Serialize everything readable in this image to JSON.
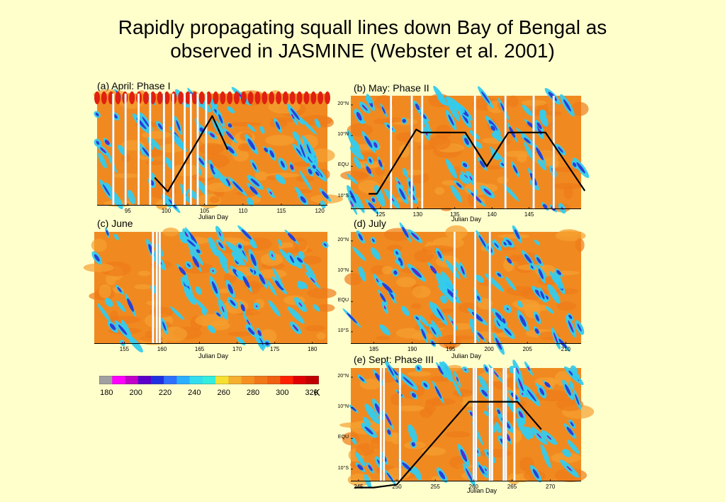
{
  "title": {
    "line1": "Rapidly propagating squall lines down Bay of Bengal as",
    "line2": "observed in JASMINE (Webster et al. 2001)"
  },
  "colors": {
    "background": "#ffffcc",
    "cold_purple": "#8a1ab8",
    "blue": "#2a3fd6",
    "cyan": "#33ccee",
    "warm_orange": "#f08a20",
    "hot_red": "#e02010",
    "track_line": "#000000"
  },
  "chart_data": [
    {
      "type": "heatmap",
      "id": "a",
      "panel_label": "(a) April: Phase I",
      "xlabel": "Julian Day",
      "ylabel": "",
      "x_ticks": [
        "95",
        "100",
        "105",
        "110",
        "115",
        "120"
      ],
      "y_ticks": [],
      "xlim": [
        91,
        121
      ],
      "ylim": [
        -12,
        28
      ],
      "data_gaps_julian_day": [
        93.1,
        94.7,
        96.4,
        97.9,
        99.7,
        100.9,
        102.4,
        103.2,
        104.1,
        105.2
      ],
      "track": [
        {
          "x": 98.5,
          "y": -2
        },
        {
          "x": 100.2,
          "y": -7
        },
        {
          "x": 106,
          "y": 20
        },
        {
          "x": 108,
          "y": 8
        }
      ]
    },
    {
      "type": "heatmap",
      "id": "b",
      "panel_label": "(b) May: Phase II",
      "xlabel": "Julian Day",
      "ylabel": "",
      "x_ticks": [
        "125",
        "130",
        "135",
        "140",
        "145"
      ],
      "y_ticks": [
        "20°N",
        "10°N",
        "EQU",
        "10°S"
      ],
      "xlim": [
        121,
        152
      ],
      "ylim": [
        -14,
        23
      ],
      "data_gaps_julian_day": [
        126.4,
        129.2,
        130.6,
        137.7,
        141.8,
        145.6,
        148.3
      ],
      "track": [
        {
          "x": 123.4,
          "y": -9
        },
        {
          "x": 124.5,
          "y": -9
        },
        {
          "x": 129.8,
          "y": 12
        },
        {
          "x": 130.5,
          "y": 11
        },
        {
          "x": 136.4,
          "y": 11
        },
        {
          "x": 139.3,
          "y": 0
        },
        {
          "x": 142.2,
          "y": 11
        },
        {
          "x": 147.2,
          "y": 11
        },
        {
          "x": 152.5,
          "y": -8
        }
      ]
    },
    {
      "type": "heatmap",
      "id": "c",
      "panel_label": "(c) June",
      "xlabel": "Julian Day",
      "ylabel": "",
      "x_ticks": [
        "155",
        "160",
        "165",
        "170",
        "175",
        "180"
      ],
      "y_ticks": [],
      "xlim": [
        151,
        182
      ],
      "ylim": [
        -12,
        28
      ],
      "data_gaps_julian_day": [
        158.8,
        159.3,
        159.7
      ],
      "track": []
    },
    {
      "type": "heatmap",
      "id": "d",
      "panel_label": "(d) July",
      "xlabel": "Julian Day",
      "ylabel": "",
      "x_ticks": [
        "185",
        "190",
        "195",
        "200",
        "205",
        "210"
      ],
      "y_ticks": [
        "20°N",
        "10°N",
        "EQU",
        "10°S"
      ],
      "xlim": [
        182,
        212
      ],
      "ylim": [
        -14,
        23
      ],
      "data_gaps_julian_day": [
        195.5,
        198.2,
        200.1
      ],
      "track": []
    },
    {
      "type": "heatmap",
      "id": "e",
      "panel_label": "(e) Sept: Phase III",
      "xlabel": "Julian Day",
      "ylabel": "",
      "x_ticks": [
        "245",
        "250",
        "255",
        "260",
        "265",
        "270"
      ],
      "y_ticks": [
        "20°N",
        "10°N",
        "EQU",
        "10°S"
      ],
      "xlim": [
        244,
        274
      ],
      "ylim": [
        -14,
        23
      ],
      "data_gaps_julian_day": [
        247.9,
        248.3,
        250.4,
        260.0,
        260.3,
        262.1,
        262.4,
        263.9,
        264.2,
        265.3
      ],
      "track": [
        {
          "x": 244.5,
          "y": -16
        },
        {
          "x": 247,
          "y": -16
        },
        {
          "x": 250,
          "y": -15
        },
        {
          "x": 259.4,
          "y": 12
        },
        {
          "x": 265.7,
          "y": 12
        },
        {
          "x": 268.8,
          "y": 3
        }
      ]
    },
    {
      "type": "colorbar",
      "id": "colorbar",
      "unit": "K",
      "tick_labels": [
        "180",
        "200",
        "220",
        "240",
        "260",
        "280",
        "300",
        "320"
      ],
      "tick_values": [
        180,
        200,
        220,
        240,
        260,
        280,
        300,
        320
      ],
      "range": [
        175,
        325
      ],
      "colors": [
        "#a0a0a0",
        "#ff00ff",
        "#c000c8",
        "#5a00c8",
        "#2030e0",
        "#3070ff",
        "#2ab0ff",
        "#33ddee",
        "#33eedd",
        "#f5e030",
        "#f5b030",
        "#f59020",
        "#f07818",
        "#f06010",
        "#ff2000",
        "#e00000",
        "#c00000"
      ]
    }
  ]
}
